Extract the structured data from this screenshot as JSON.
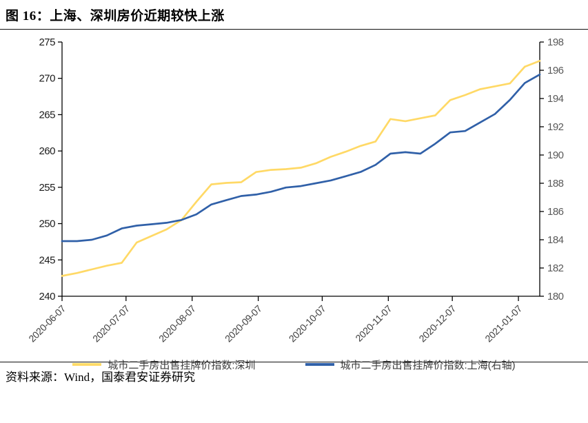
{
  "figure": {
    "title": "图 16：上海、深圳房价近期较快上涨",
    "source": "资料来源：Wind，国泰君安证券研究"
  },
  "chart_data": {
    "type": "line",
    "grid": false,
    "legend_position": "bottom",
    "x": [
      "2020-06-07",
      "2020-06-14",
      "2020-06-21",
      "2020-06-28",
      "2020-07-05",
      "2020-07-12",
      "2020-07-19",
      "2020-07-26",
      "2020-08-02",
      "2020-08-09",
      "2020-08-16",
      "2020-08-23",
      "2020-08-30",
      "2020-09-06",
      "2020-09-13",
      "2020-09-20",
      "2020-09-27",
      "2020-10-04",
      "2020-10-11",
      "2020-10-18",
      "2020-10-25",
      "2020-11-01",
      "2020-11-08",
      "2020-11-15",
      "2020-11-22",
      "2020-11-29",
      "2020-12-06",
      "2020-12-13",
      "2020-12-20",
      "2020-12-27",
      "2021-01-03",
      "2021-01-10",
      "2021-01-17"
    ],
    "x_tick_labels": [
      "2020-06-07",
      "2020-07-07",
      "2020-08-07",
      "2020-09-07",
      "2020-10-07",
      "2020-11-07",
      "2020-12-07",
      "2021-01-07"
    ],
    "series": [
      {
        "name": "城市二手房出售挂牌价指数:深圳",
        "axis": "left",
        "color": "#FFD966",
        "values": [
          242.8,
          243.2,
          243.7,
          244.2,
          244.6,
          247.4,
          248.3,
          249.2,
          250.5,
          253.0,
          255.4,
          255.6,
          255.7,
          257.1,
          257.4,
          257.5,
          257.7,
          258.3,
          259.2,
          259.9,
          260.7,
          261.3,
          264.4,
          264.1,
          264.5,
          264.9,
          267.0,
          267.7,
          268.5,
          268.9,
          269.3,
          271.6,
          272.4
        ]
      },
      {
        "name": "城市二手房出售挂牌价指数:上海(右轴)",
        "axis": "right",
        "color": "#3060A8",
        "values": [
          183.9,
          183.9,
          184.0,
          184.3,
          184.8,
          185.0,
          185.1,
          185.2,
          185.4,
          185.8,
          186.5,
          186.8,
          187.1,
          187.2,
          187.4,
          187.7,
          187.8,
          188.0,
          188.2,
          188.5,
          188.8,
          189.3,
          190.1,
          190.2,
          190.1,
          190.8,
          191.6,
          191.7,
          192.3,
          192.9,
          193.9,
          195.1,
          195.7
        ]
      }
    ],
    "left_axis": {
      "min": 240,
      "max": 275,
      "step": 5,
      "ticks": [
        240,
        245,
        250,
        255,
        260,
        265,
        270,
        275
      ]
    },
    "right_axis": {
      "min": 180,
      "max": 198,
      "step": 2,
      "ticks": [
        180,
        182,
        184,
        186,
        188,
        190,
        192,
        194,
        196,
        198
      ]
    },
    "axis_color": "#000000"
  }
}
